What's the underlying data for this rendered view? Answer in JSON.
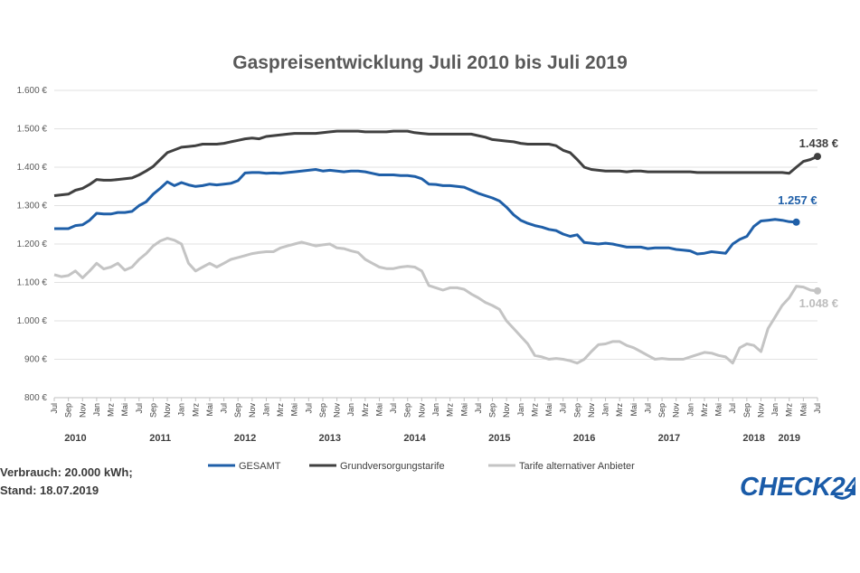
{
  "chart_data": {
    "type": "line",
    "title": "Gaspreisentwicklung Juli 2010 bis Juli 2019",
    "xlabel": "",
    "ylabel": "",
    "ylim": [
      800,
      1600
    ],
    "y_ticks": [
      "800 €",
      "900 €",
      "1.000 €",
      "1.100 €",
      "1.200 €",
      "1.300 €",
      "1.400 €",
      "1.500 €",
      "1.600 €"
    ],
    "y_tick_values": [
      800,
      900,
      1000,
      1100,
      1200,
      1300,
      1400,
      1500,
      1600
    ],
    "grid": true,
    "x_month_labels": [
      "Jul",
      "Sep",
      "Nov",
      "Jan",
      "Mrz",
      "Mai"
    ],
    "years": [
      "2010",
      "2011",
      "2012",
      "2013",
      "2014",
      "2015",
      "2016",
      "2017",
      "2018",
      "2019"
    ],
    "legend_position": "bottom",
    "series": [
      {
        "name": "GESAMT",
        "color": "#1f5fa8",
        "end_label": "1.257 €",
        "values": [
          1240,
          1240,
          1240,
          1248,
          1250,
          1262,
          1280,
          1278,
          1278,
          1282,
          1282,
          1285,
          1300,
          1310,
          1330,
          1345,
          1362,
          1352,
          1360,
          1354,
          1350,
          1352,
          1356,
          1354,
          1356,
          1358,
          1365,
          1385,
          1386,
          1386,
          1384,
          1385,
          1384,
          1386,
          1388,
          1390,
          1392,
          1394,
          1390,
          1392,
          1390,
          1388,
          1390,
          1390,
          1388,
          1384,
          1380,
          1380,
          1380,
          1378,
          1378,
          1376,
          1370,
          1356,
          1355,
          1352,
          1352,
          1350,
          1348,
          1340,
          1332,
          1326,
          1320,
          1312,
          1296,
          1276,
          1262,
          1254,
          1248,
          1244,
          1238,
          1235,
          1226,
          1220,
          1224,
          1204,
          1202,
          1200,
          1202,
          1200,
          1196,
          1192,
          1192,
          1192,
          1188,
          1190,
          1190,
          1190,
          1186,
          1184,
          1182,
          1174,
          1176,
          1180,
          1178,
          1176,
          1200,
          1212,
          1220,
          1246,
          1260,
          1262,
          1264,
          1262,
          1258,
          1257
        ]
      },
      {
        "name": "Grundversorgungstarife",
        "color": "#404040",
        "end_label": "1.438 €",
        "values": [
          1326,
          1328,
          1330,
          1340,
          1345,
          1355,
          1368,
          1366,
          1366,
          1368,
          1370,
          1372,
          1380,
          1390,
          1402,
          1420,
          1438,
          1445,
          1452,
          1454,
          1456,
          1460,
          1460,
          1460,
          1462,
          1466,
          1470,
          1474,
          1476,
          1474,
          1480,
          1482,
          1484,
          1486,
          1488,
          1488,
          1488,
          1488,
          1490,
          1492,
          1494,
          1494,
          1494,
          1494,
          1492,
          1492,
          1492,
          1492,
          1494,
          1494,
          1494,
          1490,
          1488,
          1486,
          1486,
          1486,
          1486,
          1486,
          1486,
          1486,
          1482,
          1478,
          1472,
          1470,
          1468,
          1466,
          1462,
          1460,
          1460,
          1460,
          1460,
          1456,
          1444,
          1438,
          1420,
          1400,
          1394,
          1392,
          1390,
          1390,
          1390,
          1388,
          1390,
          1390,
          1388,
          1388,
          1388,
          1388,
          1388,
          1388,
          1388,
          1386,
          1386,
          1386,
          1386,
          1386,
          1386,
          1386,
          1386,
          1386,
          1386,
          1386,
          1386,
          1386,
          1384,
          1400,
          1415,
          1420,
          1428,
          1436,
          1438,
          1438,
          1438
        ]
      },
      {
        "name": "Tarife alternativer Anbieter",
        "color": "#c4c4c4",
        "end_label": "1.048 €",
        "values": [
          1120,
          1115,
          1118,
          1130,
          1112,
          1130,
          1150,
          1135,
          1140,
          1150,
          1132,
          1140,
          1160,
          1175,
          1195,
          1208,
          1215,
          1210,
          1200,
          1150,
          1130,
          1140,
          1150,
          1140,
          1150,
          1160,
          1165,
          1170,
          1175,
          1178,
          1180,
          1180,
          1190,
          1195,
          1200,
          1205,
          1200,
          1195,
          1198,
          1200,
          1190,
          1188,
          1182,
          1178,
          1160,
          1150,
          1140,
          1136,
          1136,
          1140,
          1142,
          1140,
          1130,
          1092,
          1086,
          1080,
          1086,
          1086,
          1082,
          1070,
          1060,
          1048,
          1040,
          1030,
          1000,
          980,
          960,
          940,
          910,
          906,
          900,
          902,
          900,
          896,
          890,
          900,
          920,
          938,
          940,
          946,
          946,
          936,
          930,
          920,
          910,
          900,
          902,
          900,
          900,
          900,
          906,
          912,
          918,
          916,
          910,
          906,
          890,
          930,
          940,
          936,
          920,
          980,
          1010,
          1040,
          1060,
          1090,
          1088,
          1080,
          1078,
          1074,
          1060,
          1048
        ]
      }
    ]
  },
  "footnote": {
    "line1": "Verbrauch: 20.000 kWh;",
    "line2": "Stand: 18.07.2019"
  },
  "logo": {
    "text": "CHECK24",
    "color": "#1a5ba8"
  }
}
